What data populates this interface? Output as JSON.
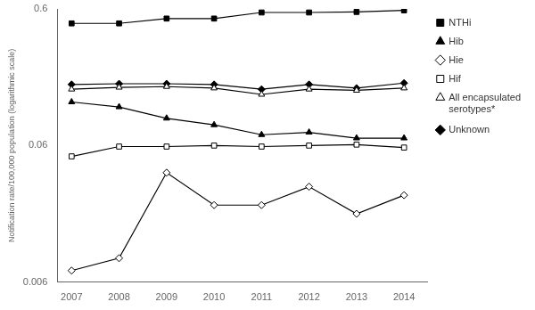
{
  "chart_data": {
    "type": "line",
    "x": [
      2007,
      2008,
      2009,
      2010,
      2011,
      2012,
      2013,
      2014
    ],
    "xlim": [
      2006.7,
      2014.5
    ],
    "xticks": [
      2007,
      2008,
      2009,
      2010,
      2011,
      2012,
      2013,
      2014
    ],
    "ylim": [
      0.006,
      0.6
    ],
    "yticks": [
      0.006,
      0.06,
      0.6
    ],
    "log": "y",
    "ylabel": "Notification rate/100,000 population (logarithmic scale)",
    "grid": false,
    "legend": "right",
    "series": [
      {
        "name": "NTHi",
        "color": "black",
        "marker": "square",
        "values": [
          0.47,
          0.47,
          0.51,
          0.51,
          0.565,
          0.565,
          0.57,
          0.585
        ]
      },
      {
        "name": "Hib",
        "color": "black",
        "marker": "triangle",
        "values": [
          0.125,
          0.115,
          0.095,
          0.085,
          0.072,
          0.075,
          0.068,
          0.068
        ]
      },
      {
        "name": "Hie",
        "color": "black",
        "marker": "diamond_open",
        "values": [
          0.0073,
          0.009,
          0.038,
          0.022,
          0.022,
          0.03,
          0.019,
          0.026
        ]
      },
      {
        "name": "Hif",
        "color": "black",
        "marker": "square_open",
        "values": [
          0.05,
          0.059,
          0.059,
          0.06,
          0.059,
          0.06,
          0.061,
          0.058
        ]
      },
      {
        "name": "All encapsulated\nserotypes*",
        "color": "black",
        "marker": "triangle_open",
        "values": [
          0.155,
          0.16,
          0.162,
          0.158,
          0.142,
          0.155,
          0.152,
          0.158
        ]
      },
      {
        "name": "Unknown",
        "color": "black",
        "marker": "diamond",
        "values": [
          0.168,
          0.17,
          0.17,
          0.168,
          0.155,
          0.168,
          0.158,
          0.172
        ]
      }
    ]
  }
}
